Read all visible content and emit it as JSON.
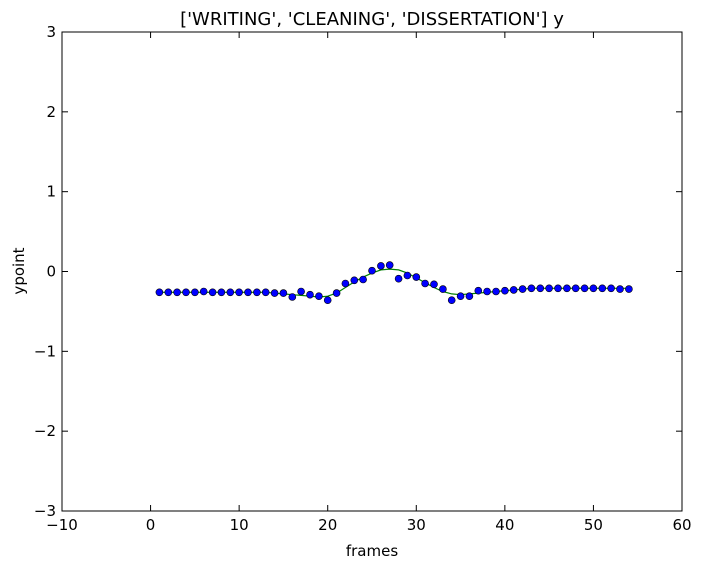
{
  "chart_data": {
    "type": "scatter",
    "title": "['WRITING', 'CLEANING', 'DISSERTATION'] y",
    "xlabel": "frames",
    "ylabel": "ypoint",
    "xlim": [
      -10,
      60
    ],
    "ylim": [
      -3,
      3
    ],
    "xticks": [
      -10,
      0,
      10,
      20,
      30,
      40,
      50,
      60
    ],
    "yticks": [
      -3,
      -2,
      -1,
      0,
      1,
      2,
      3
    ],
    "xtick_labels": [
      "−10",
      "0",
      "10",
      "20",
      "30",
      "40",
      "50",
      "60"
    ],
    "ytick_labels": [
      "−3",
      "−2",
      "−1",
      "0",
      "1",
      "2",
      "3"
    ],
    "grid": false,
    "series": [
      {
        "kind": "points",
        "color": "#0000ff",
        "x": [
          1,
          2,
          3,
          4,
          5,
          6,
          7,
          8,
          9,
          10,
          11,
          12,
          13,
          14,
          15,
          16,
          17,
          18,
          19,
          20,
          21,
          22,
          23,
          24,
          25,
          26,
          27,
          28,
          29,
          30,
          31,
          32,
          33,
          34,
          35,
          36,
          37,
          38,
          39,
          40,
          41,
          42,
          43,
          44,
          45,
          46,
          47,
          48,
          49,
          50,
          51,
          52,
          53,
          54
        ],
        "y": [
          -0.26,
          -0.26,
          -0.26,
          -0.26,
          -0.26,
          -0.25,
          -0.26,
          -0.26,
          -0.26,
          -0.26,
          -0.26,
          -0.26,
          -0.26,
          -0.27,
          -0.27,
          -0.32,
          -0.25,
          -0.29,
          -0.31,
          -0.36,
          -0.27,
          -0.15,
          -0.11,
          -0.1,
          0.01,
          0.07,
          0.08,
          -0.09,
          -0.05,
          -0.07,
          -0.15,
          -0.16,
          -0.22,
          -0.36,
          -0.31,
          -0.31,
          -0.24,
          -0.25,
          -0.25,
          -0.24,
          -0.23,
          -0.22,
          -0.21,
          -0.21,
          -0.21,
          -0.21,
          -0.21,
          -0.21,
          -0.21,
          -0.21,
          -0.21,
          -0.21,
          -0.22,
          -0.22
        ]
      },
      {
        "kind": "line",
        "color": "#008000",
        "x": [
          1,
          2,
          3,
          4,
          5,
          6,
          7,
          8,
          9,
          10,
          11,
          12,
          13,
          14,
          15,
          16,
          17,
          18,
          19,
          20,
          21,
          22,
          23,
          24,
          25,
          26,
          27,
          28,
          29,
          30,
          31,
          32,
          33,
          34,
          35,
          36,
          37,
          38,
          39,
          40,
          41,
          42,
          43,
          44,
          45,
          46,
          47,
          48,
          49,
          50,
          51,
          52,
          53,
          54
        ],
        "y": [
          -0.26,
          -0.26,
          -0.26,
          -0.26,
          -0.26,
          -0.26,
          -0.26,
          -0.26,
          -0.26,
          -0.26,
          -0.26,
          -0.26,
          -0.26,
          -0.27,
          -0.28,
          -0.29,
          -0.3,
          -0.31,
          -0.32,
          -0.31,
          -0.27,
          -0.2,
          -0.13,
          -0.07,
          -0.02,
          0.02,
          0.03,
          0.02,
          -0.02,
          -0.08,
          -0.14,
          -0.2,
          -0.25,
          -0.28,
          -0.29,
          -0.28,
          -0.27,
          -0.26,
          -0.25,
          -0.24,
          -0.23,
          -0.22,
          -0.21,
          -0.21,
          -0.21,
          -0.21,
          -0.21,
          -0.21,
          -0.21,
          -0.21,
          -0.21,
          -0.21,
          -0.21,
          -0.21
        ]
      }
    ]
  }
}
